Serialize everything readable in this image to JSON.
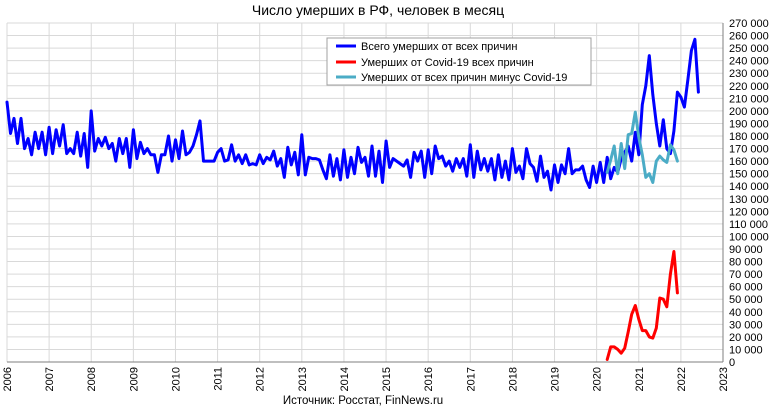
{
  "chart_data": {
    "type": "line",
    "title": "Число умерших в РФ, человек в месяц",
    "source": "Источник: Росстат, FinNews.ru",
    "xlabel": "",
    "ylabel": "",
    "xlim": [
      2006,
      2023
    ],
    "ylim": [
      0,
      270000
    ],
    "x_ticks": [
      "2006",
      "2007",
      "2008",
      "2009",
      "2010",
      "2011",
      "2012",
      "2013",
      "2014",
      "2015",
      "2016",
      "2017",
      "2018",
      "2019",
      "2020",
      "2021",
      "2022",
      "2023"
    ],
    "y_ticks": [
      "0",
      "10 000",
      "20 000",
      "30 000",
      "40 000",
      "50 000",
      "60 000",
      "70 000",
      "80 000",
      "90 000",
      "100 000",
      "110 000",
      "120 000",
      "130 000",
      "140 000",
      "150 000",
      "160 000",
      "170 000",
      "180 000",
      "190 000",
      "200 000",
      "210 000",
      "220 000",
      "230 000",
      "240 000",
      "250 000",
      "260 000",
      "270 000"
    ],
    "grid": true,
    "legend_position": "top-center",
    "series": [
      {
        "name": "Всего умерших от всех причин",
        "color": "#0000FF",
        "x_start": 2006,
        "step": 0.0833333,
        "values": [
          207000,
          182000,
          194000,
          174000,
          194000,
          170000,
          178000,
          165000,
          183000,
          170000,
          183000,
          165000,
          187000,
          166000,
          185000,
          172000,
          189000,
          166000,
          170000,
          166000,
          183000,
          164000,
          182000,
          155000,
          200000,
          168000,
          178000,
          172000,
          179000,
          170000,
          174000,
          160000,
          178000,
          166000,
          178000,
          155000,
          185000,
          162000,
          175000,
          166000,
          170000,
          165000,
          165000,
          151000,
          165000,
          165000,
          180000,
          160000,
          177000,
          162000,
          184000,
          165000,
          167000,
          172000,
          181000,
          192000,
          160000,
          160000,
          160000,
          160000,
          167000,
          170000,
          160000,
          161000,
          173000,
          160000,
          165000,
          158000,
          165000,
          157000,
          158000,
          157000,
          165000,
          158000,
          163000,
          161000,
          168000,
          156000,
          162000,
          147000,
          171000,
          157000,
          167000,
          149000,
          181000,
          149000,
          163000,
          162000,
          162000,
          161000,
          153000,
          146000,
          165000,
          148000,
          162000,
          145000,
          169000,
          147000,
          163000,
          150000,
          171000,
          159000,
          163000,
          148000,
          172000,
          148000,
          168000,
          143000,
          176000,
          155000,
          162000,
          160000,
          158000,
          156000,
          161000,
          147000,
          167000,
          160000,
          168000,
          147000,
          169000,
          150000,
          172000,
          162000,
          164000,
          156000,
          160000,
          152000,
          162000,
          155000,
          162000,
          148000,
          173000,
          147000,
          168000,
          153000,
          162000,
          152000,
          162000,
          145000,
          165000,
          147000,
          160000,
          145000,
          170000,
          151000,
          156000,
          146000,
          170000,
          158000,
          155000,
          144000,
          164000,
          147000,
          152000,
          137000,
          157000,
          143000,
          157000,
          150000,
          170000,
          150000,
          153000,
          153000,
          156000,
          145000,
          139000,
          156000,
          143000,
          159000,
          143000,
          163000,
          146000,
          155000,
          151000,
          162000,
          167000,
          172000,
          160000,
          183000,
          165000,
          205000,
          220000,
          244000,
          213000,
          190000,
          172000,
          193000,
          170000,
          166000,
          184000,
          215000,
          211000,
          203000,
          225000,
          248000,
          257000,
          215000
        ]
      },
      {
        "name": "Умерших от Covid-19 всех причин",
        "color": "#FF0000",
        "x_start": 2020.25,
        "step": 0.0833333,
        "values": [
          2000,
          12000,
          12000,
          10000,
          7000,
          11000,
          24000,
          38000,
          45000,
          34000,
          25000,
          25000,
          20000,
          19000,
          27000,
          51000,
          50000,
          44000,
          70000,
          88000,
          55000
        ]
      },
      {
        "name": "Умерших от всех причин минус Covid-19",
        "color": "#4BACC6",
        "x_start": 2020.25,
        "step": 0.0833333,
        "values": [
          151000,
          161000,
          172000,
          150000,
          174000,
          154000,
          181000,
          182000,
          199000,
          179000,
          165000,
          147000,
          150000,
          143000,
          160000,
          164000,
          161000,
          159000,
          173000,
          169000,
          160000
        ]
      }
    ]
  }
}
